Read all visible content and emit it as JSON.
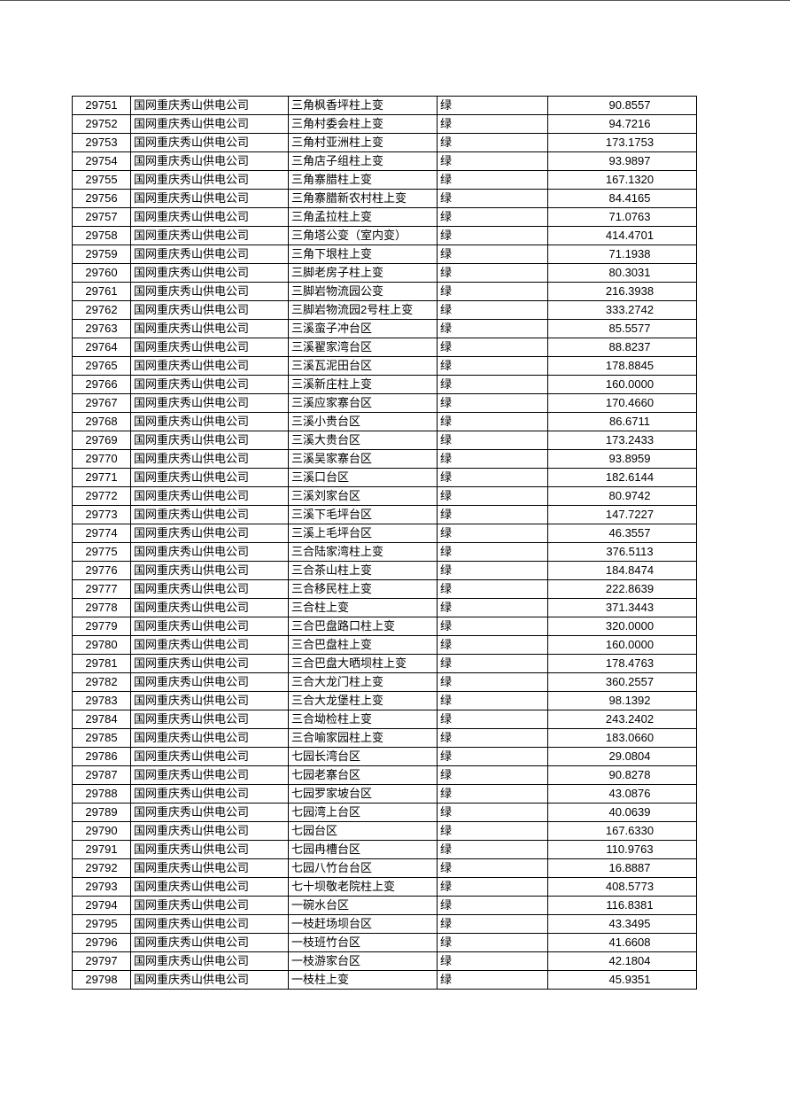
{
  "table": {
    "rows": [
      [
        "29751",
        "国网重庆秀山供电公司",
        "三角枫香坪柱上变",
        "绿",
        "90.8557"
      ],
      [
        "29752",
        "国网重庆秀山供电公司",
        "三角村委会柱上变",
        "绿",
        "94.7216"
      ],
      [
        "29753",
        "国网重庆秀山供电公司",
        "三角村亚洲柱上变",
        "绿",
        "173.1753"
      ],
      [
        "29754",
        "国网重庆秀山供电公司",
        "三角店子组柱上变",
        "绿",
        "93.9897"
      ],
      [
        "29755",
        "国网重庆秀山供电公司",
        "三角寨腊柱上变",
        "绿",
        "167.1320"
      ],
      [
        "29756",
        "国网重庆秀山供电公司",
        "三角寨腊新农村柱上变",
        "绿",
        "84.4165"
      ],
      [
        "29757",
        "国网重庆秀山供电公司",
        "三角孟拉柱上变",
        "绿",
        "71.0763"
      ],
      [
        "29758",
        "国网重庆秀山供电公司",
        "三角塔公变（室内变）",
        "绿",
        "414.4701"
      ],
      [
        "29759",
        "国网重庆秀山供电公司",
        "三角下垠柱上变",
        "绿",
        "71.1938"
      ],
      [
        "29760",
        "国网重庆秀山供电公司",
        "三脚老房子柱上变",
        "绿",
        "80.3031"
      ],
      [
        "29761",
        "国网重庆秀山供电公司",
        "三脚岩物流园公变",
        "绿",
        "216.3938"
      ],
      [
        "29762",
        "国网重庆秀山供电公司",
        "三脚岩物流园2号柱上变",
        "绿",
        "333.2742"
      ],
      [
        "29763",
        "国网重庆秀山供电公司",
        "三溪蛮子冲台区",
        "绿",
        "85.5577"
      ],
      [
        "29764",
        "国网重庆秀山供电公司",
        "三溪翟家湾台区",
        "绿",
        "88.8237"
      ],
      [
        "29765",
        "国网重庆秀山供电公司",
        "三溪瓦泥田台区",
        "绿",
        "178.8845"
      ],
      [
        "29766",
        "国网重庆秀山供电公司",
        "三溪新庄柱上变",
        "绿",
        "160.0000"
      ],
      [
        "29767",
        "国网重庆秀山供电公司",
        "三溪应家寨台区",
        "绿",
        "170.4660"
      ],
      [
        "29768",
        "国网重庆秀山供电公司",
        "三溪小贵台区",
        "绿",
        "86.6711"
      ],
      [
        "29769",
        "国网重庆秀山供电公司",
        "三溪大贵台区",
        "绿",
        "173.2433"
      ],
      [
        "29770",
        "国网重庆秀山供电公司",
        "三溪吴家寨台区",
        "绿",
        "93.8959"
      ],
      [
        "29771",
        "国网重庆秀山供电公司",
        "三溪口台区",
        "绿",
        "182.6144"
      ],
      [
        "29772",
        "国网重庆秀山供电公司",
        "三溪刘家台区",
        "绿",
        "80.9742"
      ],
      [
        "29773",
        "国网重庆秀山供电公司",
        "三溪下毛坪台区",
        "绿",
        "147.7227"
      ],
      [
        "29774",
        "国网重庆秀山供电公司",
        "三溪上毛坪台区",
        "绿",
        "46.3557"
      ],
      [
        "29775",
        "国网重庆秀山供电公司",
        "三合陆家湾柱上变",
        "绿",
        "376.5113"
      ],
      [
        "29776",
        "国网重庆秀山供电公司",
        "三合茶山柱上变",
        "绿",
        "184.8474"
      ],
      [
        "29777",
        "国网重庆秀山供电公司",
        "三合移民柱上变",
        "绿",
        "222.8639"
      ],
      [
        "29778",
        "国网重庆秀山供电公司",
        "三合柱上变",
        "绿",
        "371.3443"
      ],
      [
        "29779",
        "国网重庆秀山供电公司",
        "三合巴盘路口柱上变",
        "绿",
        "320.0000"
      ],
      [
        "29780",
        "国网重庆秀山供电公司",
        "三合巴盘柱上变",
        "绿",
        "160.0000"
      ],
      [
        "29781",
        "国网重庆秀山供电公司",
        "三合巴盘大晒坝柱上变",
        "绿",
        "178.4763"
      ],
      [
        "29782",
        "国网重庆秀山供电公司",
        "三合大龙门柱上变",
        "绿",
        "360.2557"
      ],
      [
        "29783",
        "国网重庆秀山供电公司",
        "三合大龙堡柱上变",
        "绿",
        "98.1392"
      ],
      [
        "29784",
        "国网重庆秀山供电公司",
        "三合坳检柱上变",
        "绿",
        "243.2402"
      ],
      [
        "29785",
        "国网重庆秀山供电公司",
        "三合喻家园柱上变",
        "绿",
        "183.0660"
      ],
      [
        "29786",
        "国网重庆秀山供电公司",
        "七园长湾台区",
        "绿",
        "29.0804"
      ],
      [
        "29787",
        "国网重庆秀山供电公司",
        "七园老寨台区",
        "绿",
        "90.8278"
      ],
      [
        "29788",
        "国网重庆秀山供电公司",
        "七园罗家坡台区",
        "绿",
        "43.0876"
      ],
      [
        "29789",
        "国网重庆秀山供电公司",
        "七园湾上台区",
        "绿",
        "40.0639"
      ],
      [
        "29790",
        "国网重庆秀山供电公司",
        "七园台区",
        "绿",
        "167.6330"
      ],
      [
        "29791",
        "国网重庆秀山供电公司",
        "七园冉槽台区",
        "绿",
        "110.9763"
      ],
      [
        "29792",
        "国网重庆秀山供电公司",
        "七园八竹台台区",
        "绿",
        "16.8887"
      ],
      [
        "29793",
        "国网重庆秀山供电公司",
        "七十坝敬老院柱上变",
        "绿",
        "408.5773"
      ],
      [
        "29794",
        "国网重庆秀山供电公司",
        "一碗水台区",
        "绿",
        "116.8381"
      ],
      [
        "29795",
        "国网重庆秀山供电公司",
        "一枝赶场坝台区",
        "绿",
        "43.3495"
      ],
      [
        "29796",
        "国网重庆秀山供电公司",
        "一枝班竹台区",
        "绿",
        "41.6608"
      ],
      [
        "29797",
        "国网重庆秀山供电公司",
        "一枝游家台区",
        "绿",
        "42.1804"
      ],
      [
        "29798",
        "国网重庆秀山供电公司",
        "一枝柱上变",
        "绿",
        "45.9351"
      ]
    ]
  }
}
